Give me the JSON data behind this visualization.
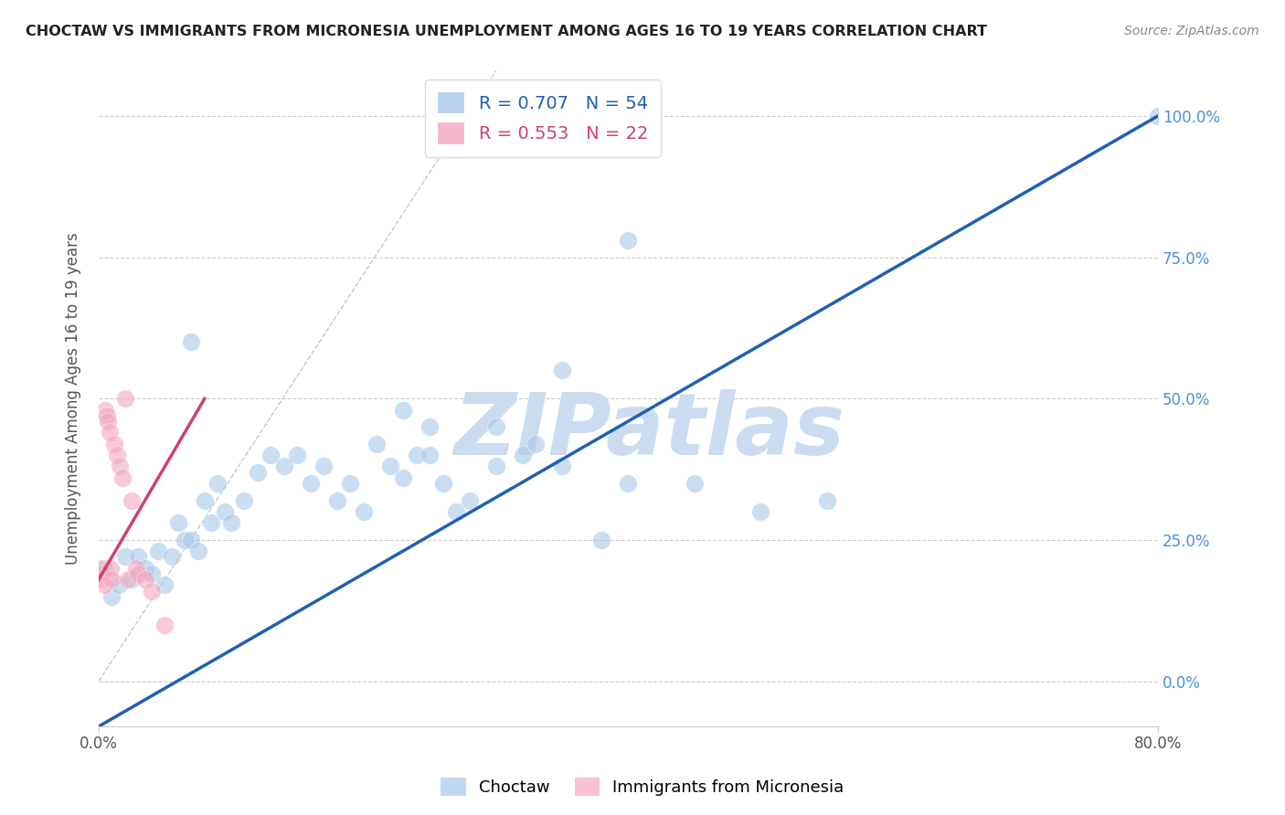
{
  "title": "CHOCTAW VS IMMIGRANTS FROM MICRONESIA UNEMPLOYMENT AMONG AGES 16 TO 19 YEARS CORRELATION CHART",
  "source": "Source: ZipAtlas.com",
  "ylabel_label": "Unemployment Among Ages 16 to 19 years",
  "legend_choctaw": "Choctaw",
  "legend_micronesia": "Immigrants from Micronesia",
  "R_choctaw": 0.707,
  "N_choctaw": 54,
  "R_micronesia": 0.553,
  "N_micronesia": 22,
  "choctaw_color": "#a8c8ea",
  "micronesia_color": "#f4a8be",
  "choctaw_line_color": "#2060b0",
  "micronesia_line_color": "#d04070",
  "ref_line_color": "#c8c8c8",
  "background_color": "#ffffff",
  "watermark_color": "#ccdcf0",
  "xlim": [
    0.0,
    0.8
  ],
  "ylim": [
    -0.08,
    1.08
  ],
  "xtick_positions": [
    0.0,
    0.8
  ],
  "xtick_labels": [
    "0.0%",
    "80.0%"
  ],
  "ytick_positions": [
    0.0,
    0.25,
    0.5,
    0.75,
    1.0
  ],
  "ytick_labels": [
    "0.0%",
    "25.0%",
    "50.0%",
    "75.0%",
    "100.0%"
  ],
  "choctaw_x": [
    0.005,
    0.01,
    0.015,
    0.02,
    0.025,
    0.03,
    0.035,
    0.04,
    0.045,
    0.05,
    0.055,
    0.06,
    0.065,
    0.07,
    0.075,
    0.08,
    0.085,
    0.09,
    0.095,
    0.1,
    0.11,
    0.12,
    0.13,
    0.14,
    0.15,
    0.16,
    0.17,
    0.18,
    0.19,
    0.2,
    0.21,
    0.22,
    0.23,
    0.24,
    0.25,
    0.26,
    0.27,
    0.28,
    0.3,
    0.32,
    0.33,
    0.35,
    0.23,
    0.25,
    0.3,
    0.35,
    0.4,
    0.45,
    0.5,
    0.55,
    0.07,
    0.38,
    0.4,
    0.8
  ],
  "choctaw_y": [
    0.2,
    0.15,
    0.17,
    0.22,
    0.18,
    0.22,
    0.2,
    0.19,
    0.23,
    0.17,
    0.22,
    0.28,
    0.25,
    0.25,
    0.23,
    0.32,
    0.28,
    0.35,
    0.3,
    0.28,
    0.32,
    0.37,
    0.4,
    0.38,
    0.4,
    0.35,
    0.38,
    0.32,
    0.35,
    0.3,
    0.42,
    0.38,
    0.36,
    0.4,
    0.4,
    0.35,
    0.3,
    0.32,
    0.38,
    0.4,
    0.42,
    0.38,
    0.48,
    0.45,
    0.45,
    0.55,
    0.35,
    0.35,
    0.3,
    0.32,
    0.6,
    0.25,
    0.78,
    1.0
  ],
  "micronesia_x": [
    0.001,
    0.002,
    0.003,
    0.004,
    0.005,
    0.006,
    0.007,
    0.008,
    0.009,
    0.01,
    0.012,
    0.014,
    0.016,
    0.018,
    0.02,
    0.022,
    0.025,
    0.028,
    0.03,
    0.035,
    0.04,
    0.05
  ],
  "micronesia_y": [
    0.2,
    0.18,
    0.19,
    0.17,
    0.48,
    0.47,
    0.46,
    0.44,
    0.2,
    0.18,
    0.42,
    0.4,
    0.38,
    0.36,
    0.5,
    0.18,
    0.32,
    0.2,
    0.19,
    0.18,
    0.16,
    0.1
  ]
}
